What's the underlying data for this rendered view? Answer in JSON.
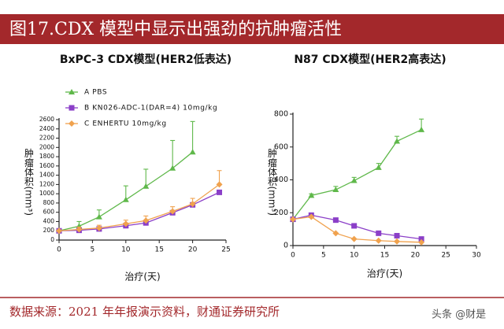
{
  "header": {
    "title": "图17.CDX 模型中显示出强劲的抗肿瘤活性"
  },
  "chart_data": [
    {
      "type": "line",
      "title": "BxPC-3 CDX模型(HER2低表达)",
      "xlabel": "治疗(天)",
      "ylabel": "肿瘤体积(mm³)",
      "xlim": [
        0,
        25
      ],
      "xticks": [
        0,
        5,
        10,
        15,
        20,
        25
      ],
      "ylim": [
        0,
        2600
      ],
      "yticks": [
        0,
        200,
        400,
        600,
        800,
        1000,
        1200,
        1400,
        1600,
        1800,
        2000,
        2200,
        2400,
        2600
      ],
      "series": [
        {
          "name": "A PBS",
          "color": "#5fb84a",
          "marker": "triangle",
          "x": [
            0,
            3,
            6,
            10,
            13,
            17,
            20
          ],
          "values": [
            200,
            300,
            500,
            870,
            1160,
            1550,
            1900
          ],
          "errors": [
            0,
            100,
            150,
            300,
            370,
            600,
            660
          ]
        },
        {
          "name": "B KN026-ADC-1(DAR=4) 10mg/kg",
          "color": "#8b3fc8",
          "marker": "square",
          "x": [
            0,
            3,
            6,
            10,
            13,
            17,
            20,
            24
          ],
          "values": [
            200,
            210,
            240,
            310,
            370,
            590,
            760,
            1030
          ]
        },
        {
          "name": "C ENHERTU  10mg/kg",
          "color": "#f0a24e",
          "marker": "diamond",
          "x": [
            0,
            3,
            6,
            10,
            13,
            17,
            20,
            24
          ],
          "values": [
            200,
            230,
            260,
            350,
            420,
            620,
            780,
            1200
          ],
          "errors": [
            0,
            50,
            60,
            80,
            100,
            100,
            120,
            300
          ]
        }
      ]
    },
    {
      "type": "line",
      "title": "N87 CDX模型(HER2高表达)",
      "xlabel": "治疗(天)",
      "ylabel": "肿瘤体积(mm³)",
      "xlim": [
        0,
        30
      ],
      "xticks": [
        0,
        5,
        10,
        15,
        20,
        25,
        30
      ],
      "ylim": [
        0,
        800
      ],
      "yticks": [
        0,
        200,
        400,
        600,
        800
      ],
      "series": [
        {
          "color": "#5fb84a",
          "marker": "triangle",
          "x": [
            0,
            3,
            7,
            10,
            14,
            17,
            21
          ],
          "values": [
            160,
            305,
            340,
            395,
            475,
            635,
            705
          ],
          "errors": [
            0,
            10,
            20,
            20,
            25,
            30,
            65
          ]
        },
        {
          "color": "#8b3fc8",
          "marker": "square",
          "x": [
            0,
            3,
            7,
            10,
            14,
            17,
            21
          ],
          "values": [
            160,
            185,
            155,
            120,
            75,
            60,
            40
          ]
        },
        {
          "color": "#f0a24e",
          "marker": "diamond",
          "x": [
            0,
            3,
            7,
            10,
            14,
            17,
            21
          ],
          "values": [
            160,
            175,
            75,
            40,
            30,
            25,
            20
          ]
        }
      ]
    }
  ],
  "footer": {
    "source": "数据来源：2021 年年报演示资料，财通证券研究所",
    "watermark": "头条 @财是"
  }
}
